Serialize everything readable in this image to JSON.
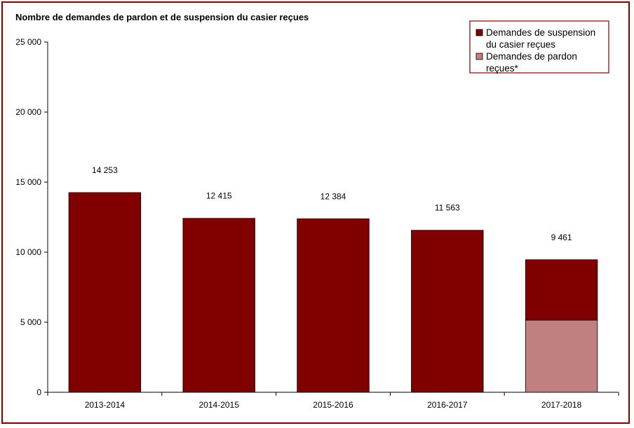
{
  "chart_data": {
    "type": "bar",
    "stacked": true,
    "title": "Nombre de demandes de pardon et de suspension du casier reçues",
    "xlabel": "",
    "ylabel": "",
    "categories": [
      "2013-2014",
      "2014-2015",
      "2015-2016",
      "2016-2017",
      "2017-2018"
    ],
    "series": [
      {
        "name": "Demandes de pardon reçues*",
        "color": "#c08080",
        "values": [
          0,
          0,
          0,
          0,
          5150
        ]
      },
      {
        "name": "Demandes de suspension du casier reçues",
        "color": "#800000",
        "values": [
          14253,
          12415,
          12384,
          11563,
          4311
        ]
      }
    ],
    "totals": [
      14253,
      12415,
      12384,
      11563,
      9461
    ],
    "total_labels": [
      "14 253",
      "12 415",
      "12 384",
      "11 563",
      "9 461"
    ],
    "ylim": [
      0,
      25000
    ],
    "yticks": [
      0,
      5000,
      10000,
      15000,
      20000,
      25000
    ],
    "ytick_labels": [
      "0",
      "5 000",
      "10 000",
      "15 000",
      "20 000",
      "25 000"
    ],
    "grid": false,
    "legend": {
      "position": "top-right",
      "entries": [
        {
          "lines": [
            "Demandes de suspension",
            "du casier reçues"
          ],
          "color": "#800000"
        },
        {
          "lines": [
            "Demandes de pardon",
            "reçues*"
          ],
          "color": "#c08080"
        }
      ]
    }
  }
}
